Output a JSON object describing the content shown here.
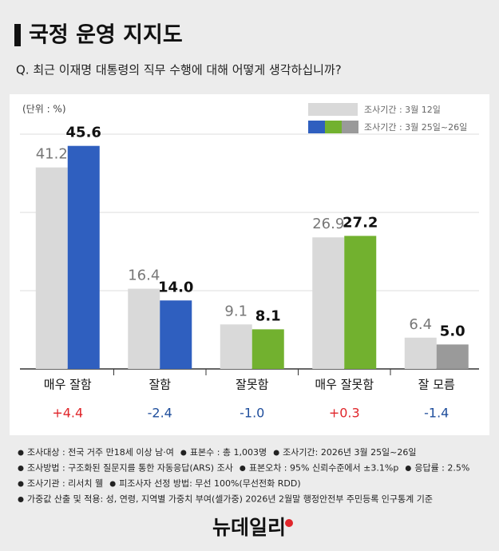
{
  "title": "국정 운영 지지도",
  "question": "Q. 최근 이재명 대통령의 직무 수행에 대해 어떻게 생각하십니까?",
  "chart_data": {
    "type": "bar",
    "unit": "(단위 : %)",
    "categories": [
      "매우 잘함",
      "잘함",
      "잘못함",
      "매우 잘못함",
      "잘 모름"
    ],
    "series": [
      {
        "name": "조사기간 : 3월 12일",
        "color": "#d9d9d9",
        "values": [
          41.2,
          16.4,
          9.1,
          26.9,
          6.4
        ]
      },
      {
        "name": "조사기간 : 3월 25일~26일",
        "colors": [
          "#2f5fbf",
          "#2f5fbf",
          "#72b12f",
          "#72b12f",
          "#9a9a9a"
        ],
        "values": [
          45.6,
          14,
          8.1,
          27.2,
          5
        ],
        "value_labels": [
          "45.6",
          "14.0",
          "8.1",
          "27.2",
          "5.0"
        ]
      }
    ],
    "changes": [
      {
        "value": 4.4,
        "label": "+4.4"
      },
      {
        "value": -2.4,
        "label": "-2.4"
      },
      {
        "value": -1,
        "label": "-1.0"
      },
      {
        "value": 0.3,
        "label": "+0.3"
      },
      {
        "value": -1.4,
        "label": "-1.4"
      }
    ],
    "ylim": [
      0,
      48
    ],
    "yticks": [
      0,
      16,
      32,
      48
    ],
    "grid": true
  },
  "notes": [
    "조사대상 : 전국 거주 만18세 이상 남·여",
    "표본수 : 총 1,003명",
    "조사기간: 2026년 3월 25일~26일",
    "조사방법 : 구조화된 질문지를 통한 자동응답(ARS) 조사",
    "표본오차 : 95% 신뢰수준에서 ±3.1%p",
    "응답률 : 2.5%",
    "조사기관 : 리서치 웰",
    "피조사자 선정 방법: 무선 100%(무선전화 RDD)",
    "가중값 산출 및 적용: 성, 연령, 지역별 가중치 부여(셀가중) 2026년 2월말 행정안전부 주민등록 인구통계 기준"
  ],
  "logo": "뉴데일리"
}
